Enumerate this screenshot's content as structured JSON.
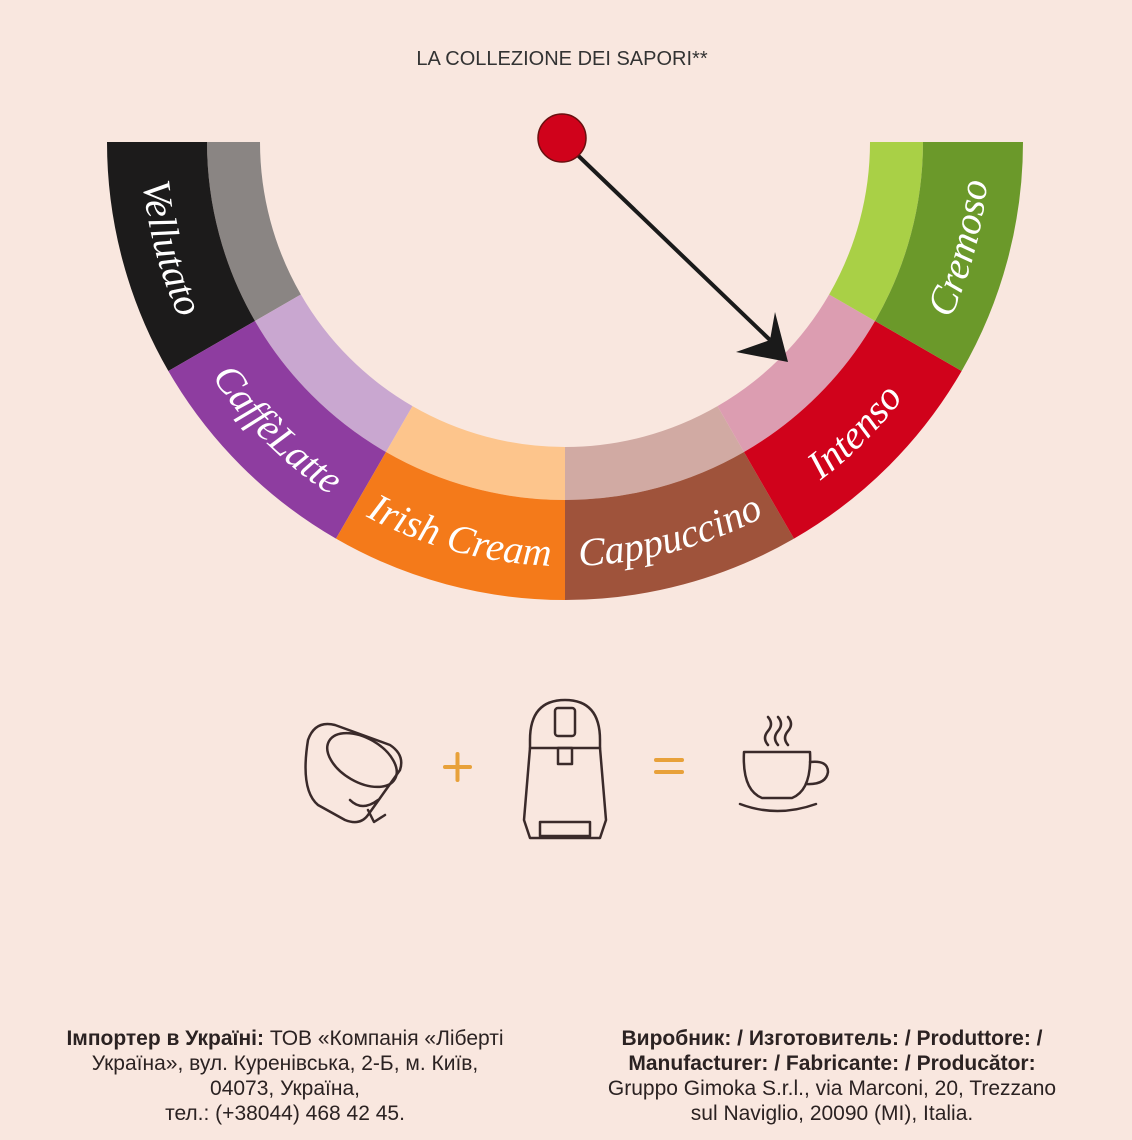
{
  "title": "LA COLLEZIONE DEI SAPORI**",
  "flavors": [
    {
      "name": "Vellutato",
      "color": "#1c1b1b",
      "light": "#8a8583"
    },
    {
      "name": "CaffèLatte",
      "color": "#8e3da0",
      "light": "#c9a7d0"
    },
    {
      "name": "Irish Cream",
      "color": "#f47a1a",
      "light": "#fdc58c"
    },
    {
      "name": "Cappuccino",
      "color": "#9f533b",
      "light": "#d1aaa3"
    },
    {
      "name": "Intenso",
      "color": "#d0021b",
      "light": "#dc9db1"
    },
    {
      "name": "Cremoso",
      "color": "#6b992a",
      "light": "#a9d046"
    }
  ],
  "importer": {
    "label": "Імпортер в Україні:",
    "lines": [
      "ТОВ «Компанія «Ліберті",
      "Україна», вул. Куренівська, 2-Б, м. Київ,",
      "04073, Україна,",
      "тел.: (+38044) 468 42 45."
    ]
  },
  "manufacturer": {
    "label_lines": [
      "Виробник: / Изготовитель: / Produttore: /",
      "Manufacturer: / Fabricante: / Producător:"
    ],
    "lines": [
      "Gruppo Gimoka S.r.l., via Marconi, 20, Trezzano",
      "sul Naviglio, 20090 (MI), Italia."
    ]
  }
}
